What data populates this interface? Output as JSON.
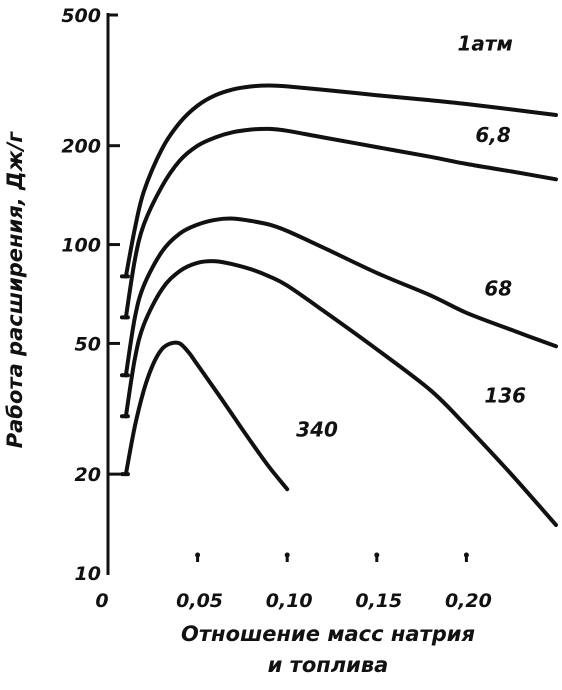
{
  "chart_data": {
    "type": "line",
    "xlabel_lines": [
      "Отношение масс натрия",
      "и топлива"
    ],
    "ylabel": "Работа расширения, Дж/г",
    "xlim": [
      0,
      0.25
    ],
    "ylim": [
      10,
      500
    ],
    "yscale": "log",
    "x_ticks": [
      {
        "value": 0,
        "label": "0"
      },
      {
        "value": 0.05,
        "label": "0,05"
      },
      {
        "value": 0.1,
        "label": "0,10"
      },
      {
        "value": 0.15,
        "label": "0,15"
      },
      {
        "value": 0.2,
        "label": "0,20"
      }
    ],
    "y_ticks": [
      {
        "value": 10,
        "label": "10"
      },
      {
        "value": 20,
        "label": "20"
      },
      {
        "value": 50,
        "label": "50"
      },
      {
        "value": 100,
        "label": "100"
      },
      {
        "value": 200,
        "label": "200"
      },
      {
        "value": 500,
        "label": "500"
      }
    ],
    "series": [
      {
        "name": "1атм",
        "label_at": [
          0.195,
          390
        ],
        "x": [
          0.01,
          0.015,
          0.02,
          0.03,
          0.04,
          0.05,
          0.06,
          0.07,
          0.08,
          0.09,
          0.1,
          0.12,
          0.15,
          0.18,
          0.2,
          0.225,
          0.25
        ],
        "y": [
          80,
          112,
          145,
          195,
          235,
          265,
          285,
          297,
          303,
          305,
          303,
          296,
          285,
          275,
          268,
          258,
          248
        ]
      },
      {
        "name": "6,8",
        "label_at": [
          0.205,
          205
        ],
        "x": [
          0.01,
          0.015,
          0.02,
          0.03,
          0.04,
          0.05,
          0.06,
          0.07,
          0.08,
          0.09,
          0.1,
          0.12,
          0.15,
          0.18,
          0.2,
          0.225,
          0.25
        ],
        "y": [
          60,
          90,
          115,
          150,
          180,
          200,
          212,
          220,
          224,
          225,
          222,
          212,
          198,
          185,
          176,
          167,
          158
        ]
      },
      {
        "name": "68",
        "label_at": [
          0.21,
          70
        ],
        "x": [
          0.01,
          0.015,
          0.02,
          0.03,
          0.04,
          0.05,
          0.06,
          0.07,
          0.08,
          0.09,
          0.1,
          0.12,
          0.15,
          0.18,
          0.2,
          0.225,
          0.25
        ],
        "y": [
          40,
          60,
          75,
          95,
          108,
          115,
          119,
          120,
          118,
          115,
          110,
          98,
          82,
          70,
          62,
          55,
          49
        ]
      },
      {
        "name": "136",
        "label_at": [
          0.21,
          33
        ],
        "x": [
          0.01,
          0.015,
          0.02,
          0.03,
          0.04,
          0.05,
          0.06,
          0.07,
          0.08,
          0.09,
          0.1,
          0.12,
          0.15,
          0.18,
          0.2,
          0.225,
          0.25
        ],
        "y": [
          30,
          45,
          57,
          73,
          83,
          88,
          89,
          87,
          84,
          80,
          75,
          63,
          48,
          36,
          28,
          20,
          14
        ]
      },
      {
        "name": "340",
        "label_at": [
          0.105,
          26
        ],
        "x": [
          0.01,
          0.015,
          0.02,
          0.025,
          0.03,
          0.035,
          0.04,
          0.045,
          0.05,
          0.06,
          0.07,
          0.08,
          0.09,
          0.1
        ],
        "y": [
          20,
          28,
          36,
          43,
          48,
          50,
          50,
          47,
          43,
          36,
          30,
          25,
          21,
          18
        ]
      }
    ],
    "grid": false
  }
}
